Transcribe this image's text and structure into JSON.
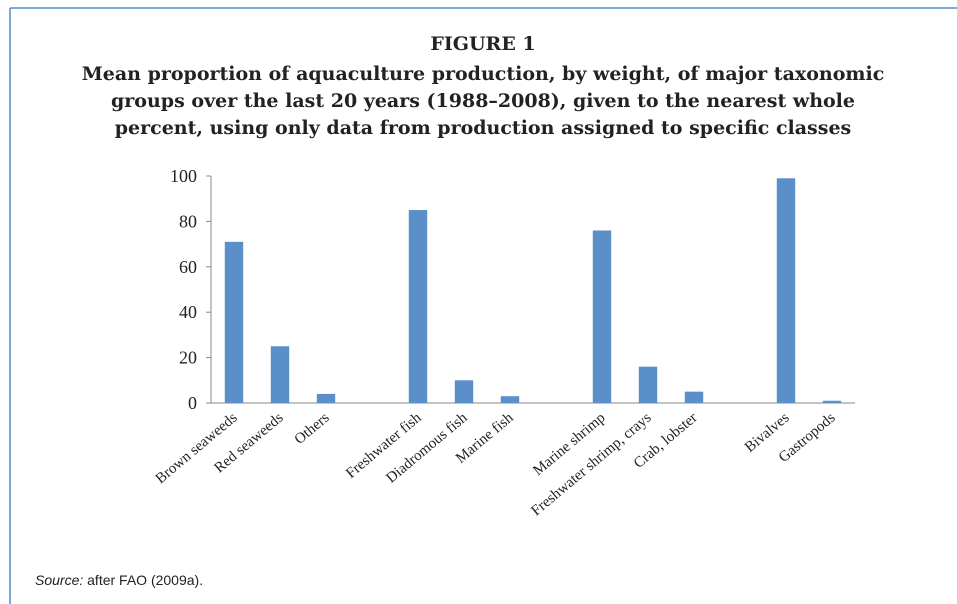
{
  "chart_data": {
    "type": "bar",
    "title": "FIGURE 1",
    "subtitle": [
      "Mean proportion of aquaculture production, by weight, of major taxonomic",
      "groups over the last 20 years (1988–2008), given to the nearest whole",
      "percent, using only data from production assigned to specific classes"
    ],
    "categories": [
      "Brown seaweeds",
      "Red seaweeds",
      "Others",
      null,
      "Freshwater fish",
      "Diadromous fish",
      "Marine fish",
      null,
      "Marine shrimp",
      "Freshwater shrimp, crays",
      "Crab, lobster",
      null,
      "Bivalves",
      "Gastropods"
    ],
    "values": [
      71,
      25,
      4,
      null,
      85,
      10,
      3,
      null,
      76,
      16,
      5,
      null,
      99,
      1
    ],
    "color": "#5b8fc9",
    "ylim": [
      0,
      100
    ],
    "yticks": [
      0,
      20,
      40,
      60,
      80,
      100
    ],
    "grid": false,
    "source_label": "Source:",
    "source_text": "after FAO (2009a)."
  }
}
